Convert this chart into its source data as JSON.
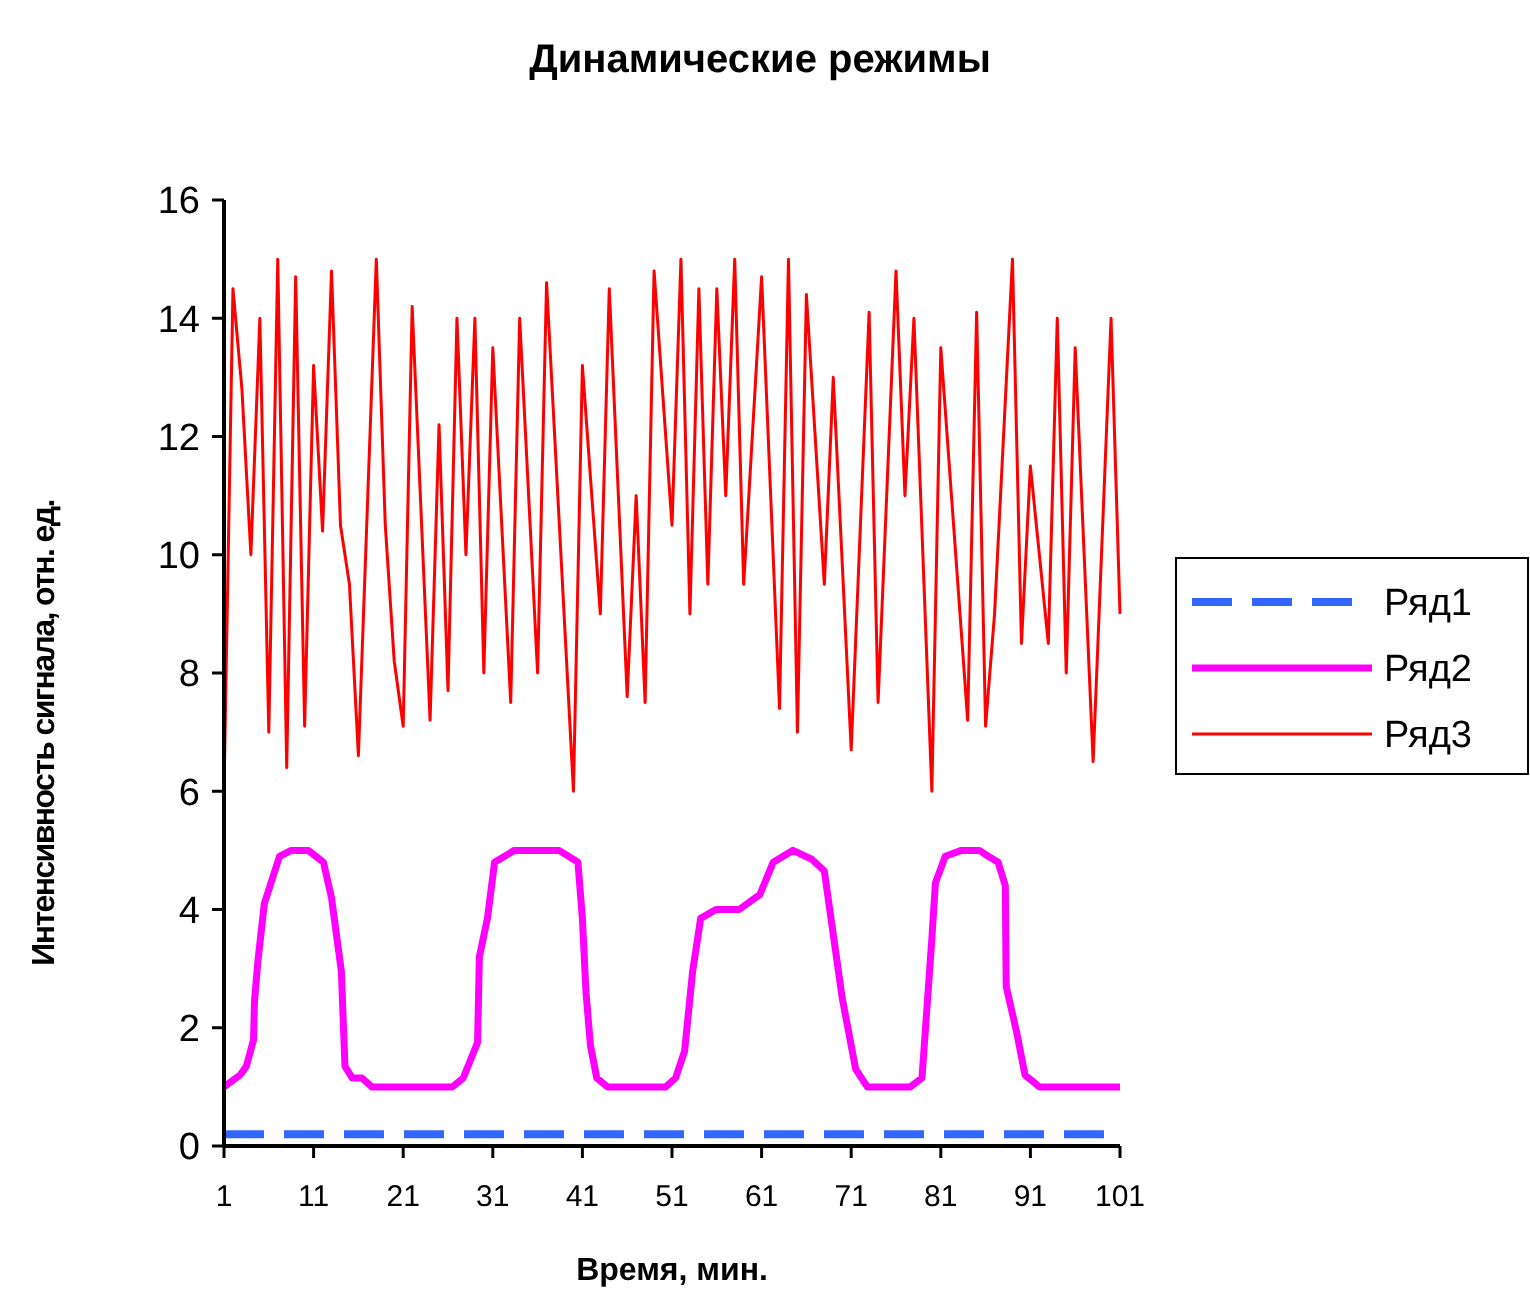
{
  "chart_data": {
    "type": "line",
    "title": "Динамические режимы",
    "xlabel": "Время, мин.",
    "ylabel": "Интенсивность сигнала, отн. ед.",
    "xlim": [
      1,
      101
    ],
    "xticks": [
      1,
      11,
      21,
      31,
      41,
      51,
      61,
      71,
      81,
      91,
      101
    ],
    "ylim": [
      0,
      16
    ],
    "yticks": [
      0,
      2,
      4,
      6,
      8,
      10,
      12,
      14,
      16
    ],
    "grid": false,
    "legend": "right",
    "marker": "none",
    "series": [
      {
        "name": "Ряд1",
        "color": "#3366ff",
        "line_style": "dashed",
        "x": [
          1,
          101
        ],
        "values": [
          0.2,
          0.2
        ]
      },
      {
        "name": "Ряд2",
        "color": "#ff00ff",
        "line_style": "solid",
        "x": [
          1,
          2.8,
          3.5,
          4.3,
          4.4,
          4.8,
          5.5,
          7.2,
          8.5,
          10.4,
          12.1,
          13,
          14.1,
          14.5,
          15.3,
          16.4,
          17.5,
          26.5,
          27.7,
          29.3,
          29.5,
          30.4,
          31.2,
          33.4,
          38.4,
          40.5,
          41,
          41.4,
          41.9,
          42.6,
          43.8,
          50.3,
          51.4,
          52.4,
          53.3,
          54.2,
          55.9,
          58.5,
          60.8,
          62.3,
          64.5,
          66.6,
          68,
          70,
          71.5,
          72.8,
          77.6,
          78.9,
          80,
          80.4,
          81.5,
          83.3,
          85.3,
          86.3,
          87.4,
          88.2,
          88.3,
          89.5,
          90.4,
          92,
          101
        ],
        "values": [
          1,
          1.2,
          1.35,
          1.8,
          2.45,
          3.15,
          4.1,
          4.9,
          5,
          5,
          4.8,
          4.2,
          2.95,
          1.35,
          1.15,
          1.15,
          1,
          1,
          1.15,
          1.75,
          3.2,
          3.85,
          4.8,
          5,
          5,
          4.8,
          3.85,
          2.6,
          1.7,
          1.15,
          1,
          1,
          1.15,
          1.6,
          2.95,
          3.85,
          4,
          4,
          4.25,
          4.8,
          5,
          4.85,
          4.65,
          2.5,
          1.3,
          1,
          1,
          1.15,
          3.5,
          4.45,
          4.9,
          5,
          5,
          4.9,
          4.8,
          4.4,
          2.7,
          1.9,
          1.2,
          1,
          1
        ]
      },
      {
        "name": "Ряд3",
        "color": "#ff0000",
        "line_style": "solid",
        "x": [
          1,
          2,
          3,
          4,
          5,
          6,
          7,
          8,
          9,
          10,
          11,
          12,
          13,
          14,
          15,
          16,
          18,
          19,
          20,
          21,
          22,
          24,
          25,
          26,
          27,
          28,
          29,
          30,
          31,
          33,
          34,
          36,
          37,
          40,
          41,
          43,
          44,
          46,
          47,
          48,
          49,
          51,
          52,
          53,
          54,
          55,
          56,
          57,
          58,
          59,
          61,
          63,
          64,
          65,
          66,
          68,
          69,
          71,
          73,
          74,
          76,
          77,
          78,
          80,
          81,
          84,
          85,
          86,
          87,
          89,
          90,
          91,
          93,
          94,
          95,
          96,
          98,
          100,
          101
        ],
        "values": [
          6,
          14.5,
          12.8,
          10,
          14,
          7,
          15,
          6.4,
          14.7,
          7.1,
          13.2,
          10.4,
          14.8,
          10.5,
          9.5,
          6.6,
          15,
          10.5,
          8.2,
          7.1,
          14.2,
          7.2,
          12.2,
          7.7,
          14,
          10,
          14,
          8,
          13.5,
          7.5,
          14,
          8,
          14.6,
          6,
          13.2,
          9,
          14.5,
          7.6,
          11,
          7.5,
          14.8,
          10.5,
          15,
          9,
          14.5,
          9.5,
          14.5,
          11,
          15,
          9.5,
          14.7,
          7.4,
          15,
          7,
          14.4,
          9.5,
          13,
          6.7,
          14.1,
          7.5,
          14.8,
          11,
          14,
          6,
          13.5,
          7.2,
          14.1,
          7.1,
          9,
          15,
          8.5,
          11.5,
          8.5,
          14,
          8,
          13.5,
          6.5,
          14,
          9
        ]
      }
    ]
  }
}
